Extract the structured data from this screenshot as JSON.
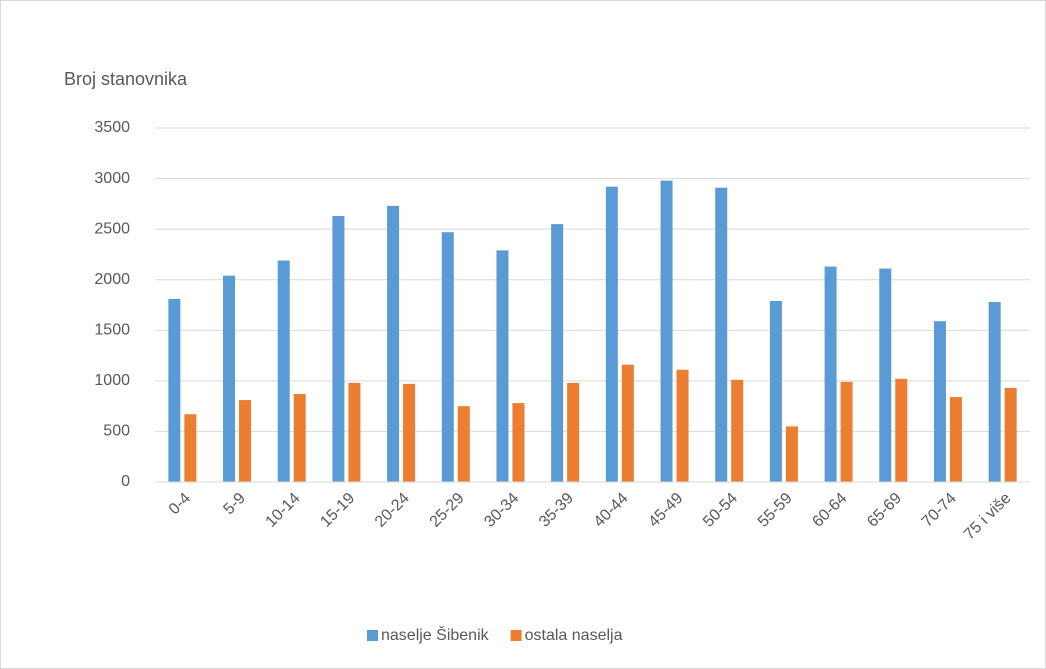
{
  "chart_data": {
    "type": "bar",
    "y_axis_label": "Broj stanovnika",
    "categories": [
      "0-4",
      "5-9",
      "10-14",
      "15-19",
      "20-24",
      "25-29",
      "30-34",
      "35-39",
      "40-44",
      "45-49",
      "50-54",
      "55-59",
      "60-64",
      "65-69",
      "70-74",
      "75 i više"
    ],
    "series": [
      {
        "name": "naselje Šibenik",
        "color": "#5b9bd5",
        "values": [
          1810,
          2040,
          2190,
          2630,
          2730,
          2470,
          2290,
          2550,
          2920,
          2980,
          2910,
          1790,
          2130,
          2110,
          1590,
          1780
        ]
      },
      {
        "name": "ostala naselja",
        "color": "#ed7d31",
        "values": [
          670,
          810,
          870,
          980,
          970,
          750,
          780,
          980,
          1160,
          1110,
          1010,
          550,
          990,
          1020,
          840,
          930
        ]
      }
    ],
    "ylim": [
      0,
      3500
    ],
    "yticks": [
      0,
      500,
      1000,
      1500,
      2000,
      2500,
      3000,
      3500
    ],
    "grid": true
  }
}
